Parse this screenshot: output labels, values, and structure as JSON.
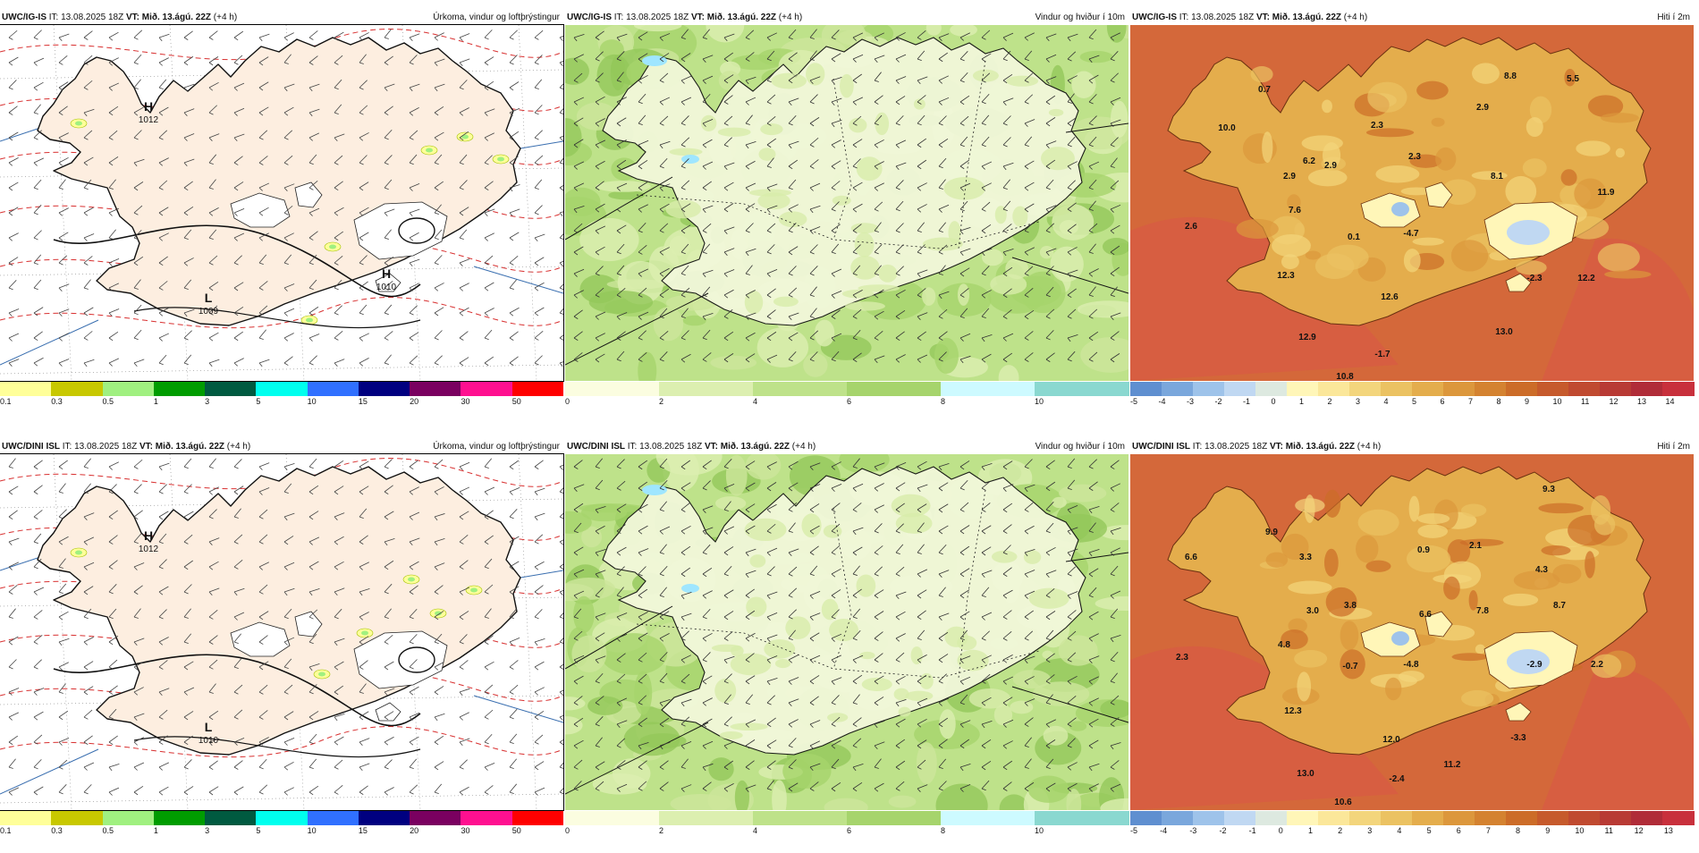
{
  "rows": [
    {
      "panels": [
        {
          "id": "precip",
          "model": "UWC/IG-IS",
          "it_label": "IT:",
          "it_value": "13.08.2025 18Z",
          "vt_label": "VT:",
          "vt_value": "Mið. 13.ágú. 22Z",
          "lead": "(+4 h)",
          "title": "Úrkoma, vindur og loftþrýstingur",
          "pressure_labels": [
            {
              "letter": "H",
              "value": "1012"
            },
            {
              "letter": "L",
              "value": "1009"
            },
            {
              "letter": "H",
              "value": "1010"
            }
          ],
          "colorbar": {
            "colors": [
              "#ffff99",
              "#c8c800",
              "#a0f080",
              "#009c00",
              "#005a40",
              "#00ffee",
              "#3070ff",
              "#000080",
              "#7a0060",
              "#ff1090",
              "#ff0000"
            ],
            "ticks": [
              "0.1",
              "0.3",
              "0.5",
              "1",
              "3",
              "5",
              "10",
              "15",
              "20",
              "30",
              "50"
            ]
          }
        },
        {
          "id": "wind",
          "model": "UWC/IG-IS",
          "it_label": "IT:",
          "it_value": "13.08.2025 18Z",
          "vt_label": "VT:",
          "vt_value": "Mið. 13.ágú. 22Z",
          "lead": "(+4 h)",
          "title": "Vindur og hviður í 10m",
          "colorbar": {
            "colors": [
              "#fbfde0",
              "#dcefb0",
              "#bee28a",
              "#a6d46c",
              "#cdfaff",
              "#8ad8d0"
            ],
            "ticks": [
              "0",
              "2",
              "4",
              "6",
              "8",
              "10"
            ]
          }
        },
        {
          "id": "temp",
          "model": "UWC/IG-IS",
          "it_label": "IT:",
          "it_value": "13.08.2025 18Z",
          "vt_label": "VT:",
          "vt_value": "Mið. 13.ágú. 22Z",
          "lead": "(+4 h)",
          "title": "Hiti í 2m",
          "temp_labels": [
            "0.7",
            "8.8",
            "5.5",
            "10.0",
            "2.9",
            "2.3",
            "2.9",
            "6.2",
            "2.9",
            "2.3",
            "8.1",
            "11.9",
            "7.6",
            "2.6",
            "0.1",
            "-4.7",
            "12.3",
            "12.6",
            "-2.3",
            "12.2",
            "12.9",
            "13.0",
            "-1.7",
            "10.8"
          ],
          "colorbar": {
            "colors": [
              "#5f8fd0",
              "#7aa7dc",
              "#9ec3ea",
              "#c0d8f2",
              "#dde9e0",
              "#fff6b8",
              "#fbe79a",
              "#f3d57c",
              "#ebc262",
              "#e4ad4c",
              "#dc973c",
              "#d48230",
              "#cc6c28",
              "#c65a2c",
              "#c04a30",
              "#b83a34",
              "#b02c38",
              "#c8303c"
            ],
            "ticks": [
              "-5",
              "-4",
              "-3",
              "-2",
              "-1",
              "0",
              "1",
              "2",
              "3",
              "4",
              "5",
              "6",
              "7",
              "8",
              "9",
              "10",
              "11",
              "12",
              "13",
              "14"
            ]
          }
        }
      ]
    },
    {
      "panels": [
        {
          "id": "precip",
          "model": "UWC/DINI ISL",
          "it_label": "IT:",
          "it_value": "13.08.2025 18Z",
          "vt_label": "VT:",
          "vt_value": "Mið. 13.ágú. 22Z",
          "lead": "(+4 h)",
          "title": "Úrkoma, vindur og loftþrýstingur",
          "pressure_labels": [
            {
              "letter": "H",
              "value": "1012"
            },
            {
              "letter": "L",
              "value": "1010"
            }
          ],
          "colorbar": {
            "colors": [
              "#ffff99",
              "#c8c800",
              "#a0f080",
              "#009c00",
              "#005a40",
              "#00ffee",
              "#3070ff",
              "#000080",
              "#7a0060",
              "#ff1090",
              "#ff0000"
            ],
            "ticks": [
              "0.1",
              "0.3",
              "0.5",
              "1",
              "3",
              "5",
              "10",
              "15",
              "20",
              "30",
              "50"
            ]
          }
        },
        {
          "id": "wind",
          "model": "UWC/DINI ISL",
          "it_label": "IT:",
          "it_value": "13.08.2025 18Z",
          "vt_label": "VT:",
          "vt_value": "Mið. 13.ágú. 22Z",
          "lead": "(+4 h)",
          "title": "Vindur og hviður í 10m",
          "colorbar": {
            "colors": [
              "#fbfde0",
              "#dcefb0",
              "#bee28a",
              "#a6d46c",
              "#cdfaff",
              "#8ad8d0"
            ],
            "ticks": [
              "0",
              "2",
              "4",
              "6",
              "8",
              "10"
            ]
          }
        },
        {
          "id": "temp",
          "model": "UWC/DINI ISL",
          "it_label": "IT:",
          "it_value": "13.08.2025 18Z",
          "vt_label": "VT:",
          "vt_value": "Mið. 13.ágú. 22Z",
          "lead": "(+4 h)",
          "title": "Hiti í 2m",
          "temp_labels": [
            "9.3",
            "9.9",
            "2.1",
            "6.6",
            "3.3",
            "0.9",
            "4.3",
            "3.0",
            "3.8",
            "6.6",
            "7.8",
            "8.7",
            "4.8",
            "2.3",
            "-0.7",
            "-4.8",
            "-2.9",
            "2.2",
            "12.3",
            "12.0",
            "-3.3",
            "13.0",
            "-2.4",
            "11.2",
            "10.6"
          ],
          "colorbar": {
            "colors": [
              "#5f8fd0",
              "#7aa7dc",
              "#9ec3ea",
              "#c0d8f2",
              "#dde9e0",
              "#fff6b8",
              "#fbe79a",
              "#f3d57c",
              "#ebc262",
              "#e4ad4c",
              "#dc973c",
              "#d48230",
              "#cc6c28",
              "#c65a2c",
              "#c04a30",
              "#b83a34",
              "#b02c38",
              "#c8303c"
            ],
            "ticks": [
              "-5",
              "-4",
              "-3",
              "-2",
              "-1",
              "0",
              "1",
              "2",
              "3",
              "4",
              "5",
              "6",
              "7",
              "8",
              "9",
              "10",
              "11",
              "12",
              "13"
            ]
          }
        }
      ]
    }
  ]
}
